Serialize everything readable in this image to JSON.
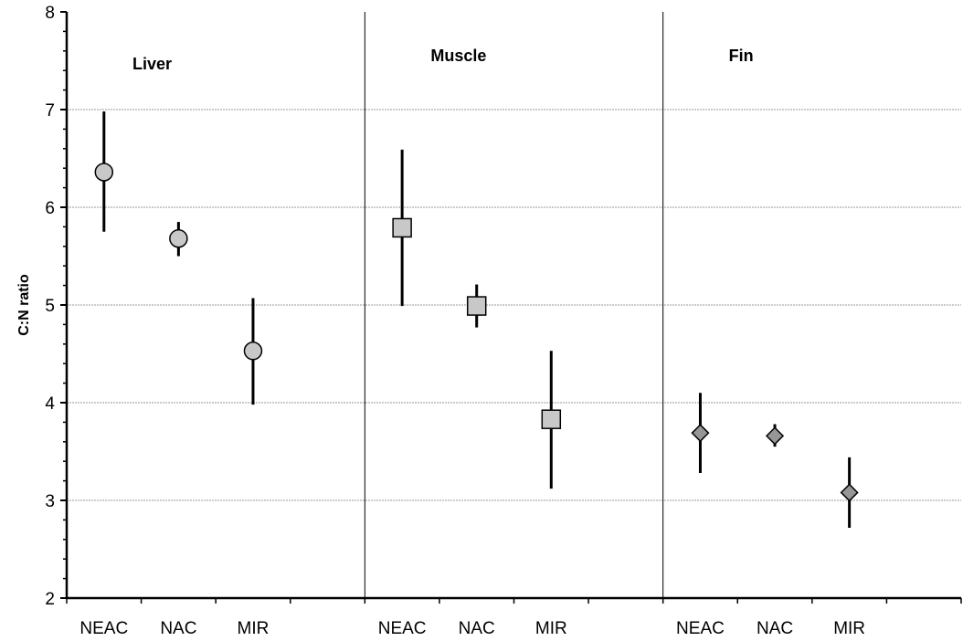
{
  "chart_data": {
    "type": "scatter",
    "ylabel": "C:N ratio",
    "xlabel": "",
    "ylim": [
      2,
      8
    ],
    "yticks": [
      2,
      3,
      4,
      5,
      6,
      7,
      8
    ],
    "grid": true,
    "panels": [
      {
        "title": "Liver",
        "marker": "circle",
        "categories": [
          "NEAC",
          "NAC",
          "MIR"
        ],
        "values": [
          6.36,
          5.68,
          4.53
        ],
        "error_low": [
          5.75,
          5.5,
          3.98
        ],
        "error_high": [
          6.98,
          5.85,
          5.07
        ]
      },
      {
        "title": "Muscle",
        "marker": "square",
        "categories": [
          "NEAC",
          "NAC",
          "MIR"
        ],
        "values": [
          5.79,
          4.99,
          3.83
        ],
        "error_low": [
          4.99,
          4.77,
          3.12
        ],
        "error_high": [
          6.59,
          5.21,
          4.53
        ]
      },
      {
        "title": "Fin",
        "marker": "diamond",
        "categories": [
          "NEAC",
          "NAC",
          "MIR"
        ],
        "values": [
          3.69,
          3.66,
          3.08
        ],
        "error_low": [
          3.28,
          3.55,
          2.72
        ],
        "error_high": [
          4.1,
          3.78,
          3.44
        ]
      }
    ],
    "colors": {
      "marker_fill_light": "#c8c8c8",
      "marker_fill_dark": "#969696",
      "grid": "#999999",
      "axis": "#000000"
    }
  }
}
